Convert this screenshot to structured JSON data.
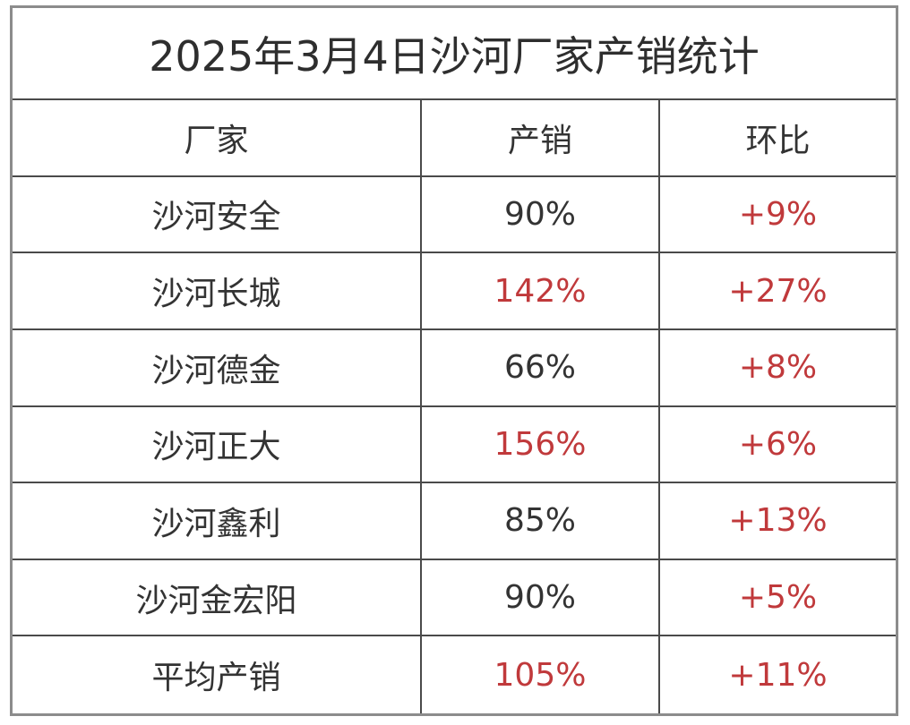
{
  "title": "2025年3月4日沙河厂家产销统计",
  "headers": [
    "厂家",
    "产销",
    "环比"
  ],
  "rows": [
    {
      "name": "沙河安全",
      "output": "90%",
      "change": "+9%"
    },
    {
      "name": "沙河长城",
      "output": "142%",
      "change": "+27%"
    },
    {
      "name": "沙河德金",
      "output": "66%",
      "change": "+8%"
    },
    {
      "name": "沙河正大",
      "output": "156%",
      "change": "+6%"
    },
    {
      "name": "沙河鑫利",
      "output": "85%",
      "change": "+13%"
    },
    {
      "name": "沙河金宏阳",
      "output": "90%",
      "change": "+5%"
    },
    {
      "name": "平均产销",
      "output": "105%",
      "change": "+11%"
    }
  ],
  "colors": {
    "highlight": "#c0393b",
    "text": "#333333",
    "border": "#4a4a4a",
    "frame": "#8c8c8c"
  }
}
